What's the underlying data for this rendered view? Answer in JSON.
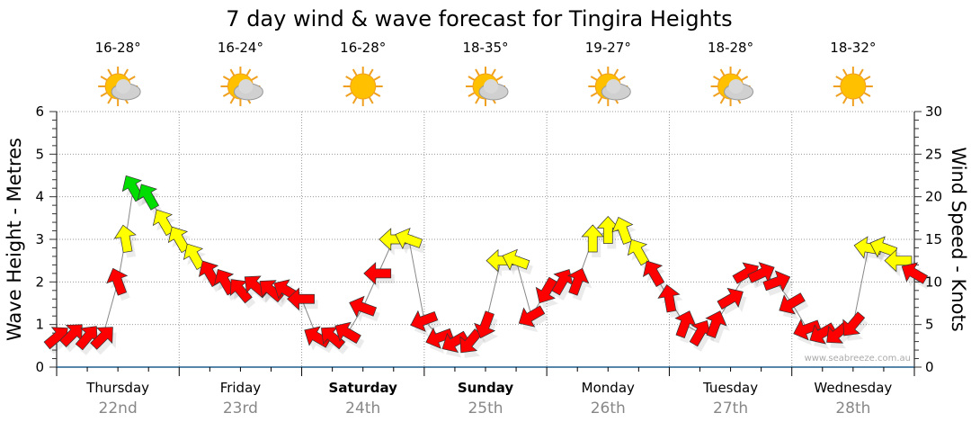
{
  "chart_data": {
    "type": "scatter",
    "title": "7 day wind & wave forecast for Tingira Heights",
    "ylabel": "Wave Height - Metres",
    "y2label": "Wind Speed - Knots",
    "ylim": [
      0,
      6
    ],
    "y2lim": [
      0,
      30
    ],
    "yticks": [
      "0",
      "1",
      "2",
      "3",
      "4",
      "5",
      "6"
    ],
    "y2ticks": [
      "0",
      "5",
      "10",
      "15",
      "20",
      "25",
      "30"
    ],
    "grid": true,
    "watermark": "www.seabreeze.com.au",
    "colors": {
      "red": "#ff0000",
      "yellow": "#ffff00",
      "green": "#00dd00",
      "axis": "#1f5f8b"
    },
    "days": [
      {
        "name": "Thursday",
        "date": "22nd",
        "temp": "16-28°",
        "icon": "partly-cloudy-icon",
        "bold": false
      },
      {
        "name": "Friday",
        "date": "23rd",
        "temp": "16-24°",
        "icon": "partly-cloudy-icon",
        "bold": false
      },
      {
        "name": "Saturday",
        "date": "24th",
        "temp": "16-28°",
        "icon": "sunny-icon",
        "bold": true
      },
      {
        "name": "Sunday",
        "date": "25th",
        "temp": "18-35°",
        "icon": "partly-cloudy-icon",
        "bold": true
      },
      {
        "name": "Monday",
        "date": "26th",
        "temp": "19-27°",
        "icon": "partly-cloudy-icon",
        "bold": false
      },
      {
        "name": "Tuesday",
        "date": "27th",
        "temp": "18-28°",
        "icon": "partly-cloudy-icon",
        "bold": false
      },
      {
        "name": "Wednesday",
        "date": "28th",
        "temp": "18-32°",
        "icon": "sunny-icon",
        "bold": false
      }
    ],
    "wind_series": {
      "name": "Wind speed (knots) with direction arrows",
      "hours": [
        0,
        3,
        6,
        9,
        12,
        13.5,
        15,
        18,
        21,
        24,
        27,
        30,
        33,
        36,
        39,
        42,
        45,
        48,
        51,
        54,
        57,
        60,
        63,
        66,
        69,
        72,
        75,
        78,
        81,
        84,
        87,
        90,
        93,
        96,
        99,
        102,
        105,
        108,
        111,
        114,
        117,
        120,
        123,
        126,
        129,
        132,
        135,
        138,
        141,
        144,
        147,
        150,
        153,
        156,
        159,
        162,
        165,
        168
      ],
      "knots": [
        3.5,
        3.8,
        3.5,
        3.5,
        10,
        15,
        21,
        20,
        17,
        15,
        13,
        11,
        10,
        9,
        9.5,
        9,
        9,
        8,
        3.5,
        3.5,
        4,
        7,
        11,
        15,
        15,
        5.5,
        3.5,
        3,
        3,
        5,
        12.5,
        12.5,
        6,
        9,
        10,
        10,
        15,
        16,
        16,
        13.5,
        11,
        8,
        5,
        4,
        5,
        8,
        11,
        11,
        10,
        7.5,
        4.5,
        4,
        4,
        5,
        14,
        14,
        12.5,
        11
      ],
      "bearing": [
        50,
        45,
        40,
        45,
        340,
        350,
        330,
        330,
        330,
        330,
        330,
        330,
        330,
        320,
        310,
        310,
        300,
        270,
        300,
        310,
        300,
        290,
        270,
        270,
        290,
        250,
        250,
        240,
        220,
        200,
        270,
        290,
        240,
        210,
        30,
        20,
        0,
        0,
        340,
        330,
        330,
        350,
        20,
        30,
        20,
        60,
        60,
        65,
        70,
        240,
        250,
        240,
        230,
        220,
        280,
        290,
        270,
        300
      ],
      "color": [
        "red",
        "red",
        "red",
        "red",
        "red",
        "yellow",
        "green",
        "green",
        "yellow",
        "yellow",
        "yellow",
        "red",
        "red",
        "red",
        "red",
        "red",
        "red",
        "red",
        "red",
        "red",
        "red",
        "red",
        "red",
        "yellow",
        "yellow",
        "red",
        "red",
        "red",
        "red",
        "red",
        "yellow",
        "yellow",
        "red",
        "red",
        "red",
        "red",
        "yellow",
        "yellow",
        "yellow",
        "yellow",
        "red",
        "red",
        "red",
        "red",
        "red",
        "red",
        "red",
        "red",
        "red",
        "red",
        "red",
        "red",
        "red",
        "red",
        "yellow",
        "yellow",
        "yellow",
        "red"
      ]
    }
  }
}
